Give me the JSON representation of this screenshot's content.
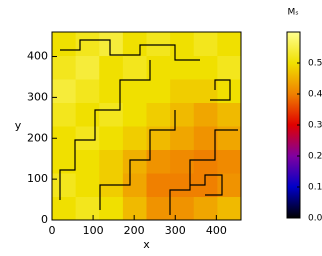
{
  "chart_data": {
    "type": "heatmap",
    "xlabel": "x",
    "ylabel": "y",
    "colorbar_label": "Mₛ",
    "xlim": [
      0,
      460
    ],
    "ylim": [
      0,
      460
    ],
    "xticks": [
      0,
      100,
      200,
      300,
      400
    ],
    "yticks": [
      0,
      100,
      200,
      300,
      400
    ],
    "clim": [
      0,
      0.6
    ],
    "cticks": [
      0.0,
      0.1,
      0.2,
      0.3,
      0.4,
      0.5
    ],
    "colors": [
      "#000000",
      "#0000c8",
      "#8000a0",
      "#e00000",
      "#f08000",
      "#f0e000",
      "#ffff90"
    ],
    "z": [
      [
        0.5,
        0.52,
        0.5,
        0.46,
        0.42,
        0.42,
        0.44,
        0.46
      ],
      [
        0.52,
        0.5,
        0.48,
        0.44,
        0.4,
        0.4,
        0.4,
        0.42
      ],
      [
        0.5,
        0.5,
        0.48,
        0.45,
        0.42,
        0.41,
        0.4,
        0.41
      ],
      [
        0.5,
        0.52,
        0.5,
        0.48,
        0.46,
        0.44,
        0.42,
        0.44
      ],
      [
        0.52,
        0.5,
        0.52,
        0.5,
        0.48,
        0.46,
        0.44,
        0.46
      ],
      [
        0.54,
        0.52,
        0.5,
        0.5,
        0.5,
        0.48,
        0.48,
        0.5
      ],
      [
        0.52,
        0.54,
        0.5,
        0.52,
        0.5,
        0.5,
        0.5,
        0.52
      ],
      [
        0.5,
        0.52,
        0.54,
        0.5,
        0.52,
        0.5,
        0.52,
        0.5
      ]
    ]
  }
}
